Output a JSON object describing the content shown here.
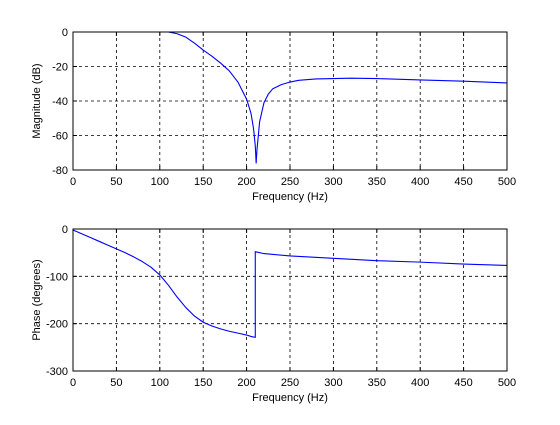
{
  "chart_data": [
    {
      "type": "line",
      "title": "",
      "xlabel": "Frequency (Hz)",
      "ylabel": "Magnitude (dB)",
      "xlim": [
        0,
        500
      ],
      "ylim": [
        -80,
        0
      ],
      "xticks": [
        0,
        50,
        100,
        150,
        200,
        250,
        300,
        350,
        400,
        450,
        500
      ],
      "yticks": [
        0,
        -20,
        -40,
        -60,
        -80
      ],
      "xtick_labels": [
        "0",
        "50",
        "100",
        "150",
        "200",
        "250",
        "300",
        "350",
        "400",
        "450",
        "500"
      ],
      "ytick_labels": [
        "0",
        "-20",
        "-40",
        "-60",
        "-80"
      ],
      "grid": true,
      "line_color": "#0000ff",
      "series": [
        {
          "x": [
            0,
            50,
            100,
            110,
            120,
            130,
            140,
            150,
            160,
            170,
            180,
            190,
            200,
            205,
            208,
            210,
            211,
            212,
            215,
            220,
            225,
            230,
            240,
            250,
            260,
            280,
            300,
            320,
            350,
            400,
            450,
            500
          ],
          "y": [
            0,
            0,
            0,
            0,
            -1,
            -3,
            -6.5,
            -10.5,
            -14,
            -18,
            -22.5,
            -29,
            -39,
            -47,
            -56,
            -66,
            -76,
            -68,
            -52,
            -41,
            -36,
            -33,
            -30.5,
            -29,
            -28,
            -27.2,
            -27,
            -26.8,
            -27,
            -27.8,
            -28.5,
            -29.5
          ]
        }
      ]
    },
    {
      "type": "line",
      "title": "",
      "xlabel": "Frequency (Hz)",
      "ylabel": "Phase (degrees)",
      "xlim": [
        0,
        500
      ],
      "ylim": [
        -300,
        0
      ],
      "xticks": [
        0,
        50,
        100,
        150,
        200,
        250,
        300,
        350,
        400,
        450,
        500
      ],
      "yticks": [
        0,
        -100,
        -200,
        -300
      ],
      "xtick_labels": [
        "0",
        "50",
        "100",
        "150",
        "200",
        "250",
        "300",
        "350",
        "400",
        "450",
        "500"
      ],
      "ytick_labels": [
        "0",
        "-100",
        "-200",
        "-300"
      ],
      "grid": true,
      "line_color": "#0000ff",
      "series": [
        {
          "x": [
            0,
            10,
            20,
            30,
            40,
            50,
            60,
            70,
            80,
            90,
            100,
            110,
            120,
            130,
            140,
            150,
            160,
            170,
            180,
            190,
            200,
            205,
            210,
            210,
            220,
            250,
            300,
            350,
            400,
            450,
            500
          ],
          "y": [
            -2,
            -10,
            -18,
            -26,
            -34,
            -42,
            -50,
            -59,
            -69,
            -81,
            -97,
            -119,
            -144,
            -166,
            -184,
            -197,
            -205,
            -211,
            -216,
            -220,
            -224,
            -227,
            -229,
            -48,
            -52,
            -57,
            -62,
            -67,
            -70,
            -74,
            -77
          ]
        }
      ]
    }
  ]
}
